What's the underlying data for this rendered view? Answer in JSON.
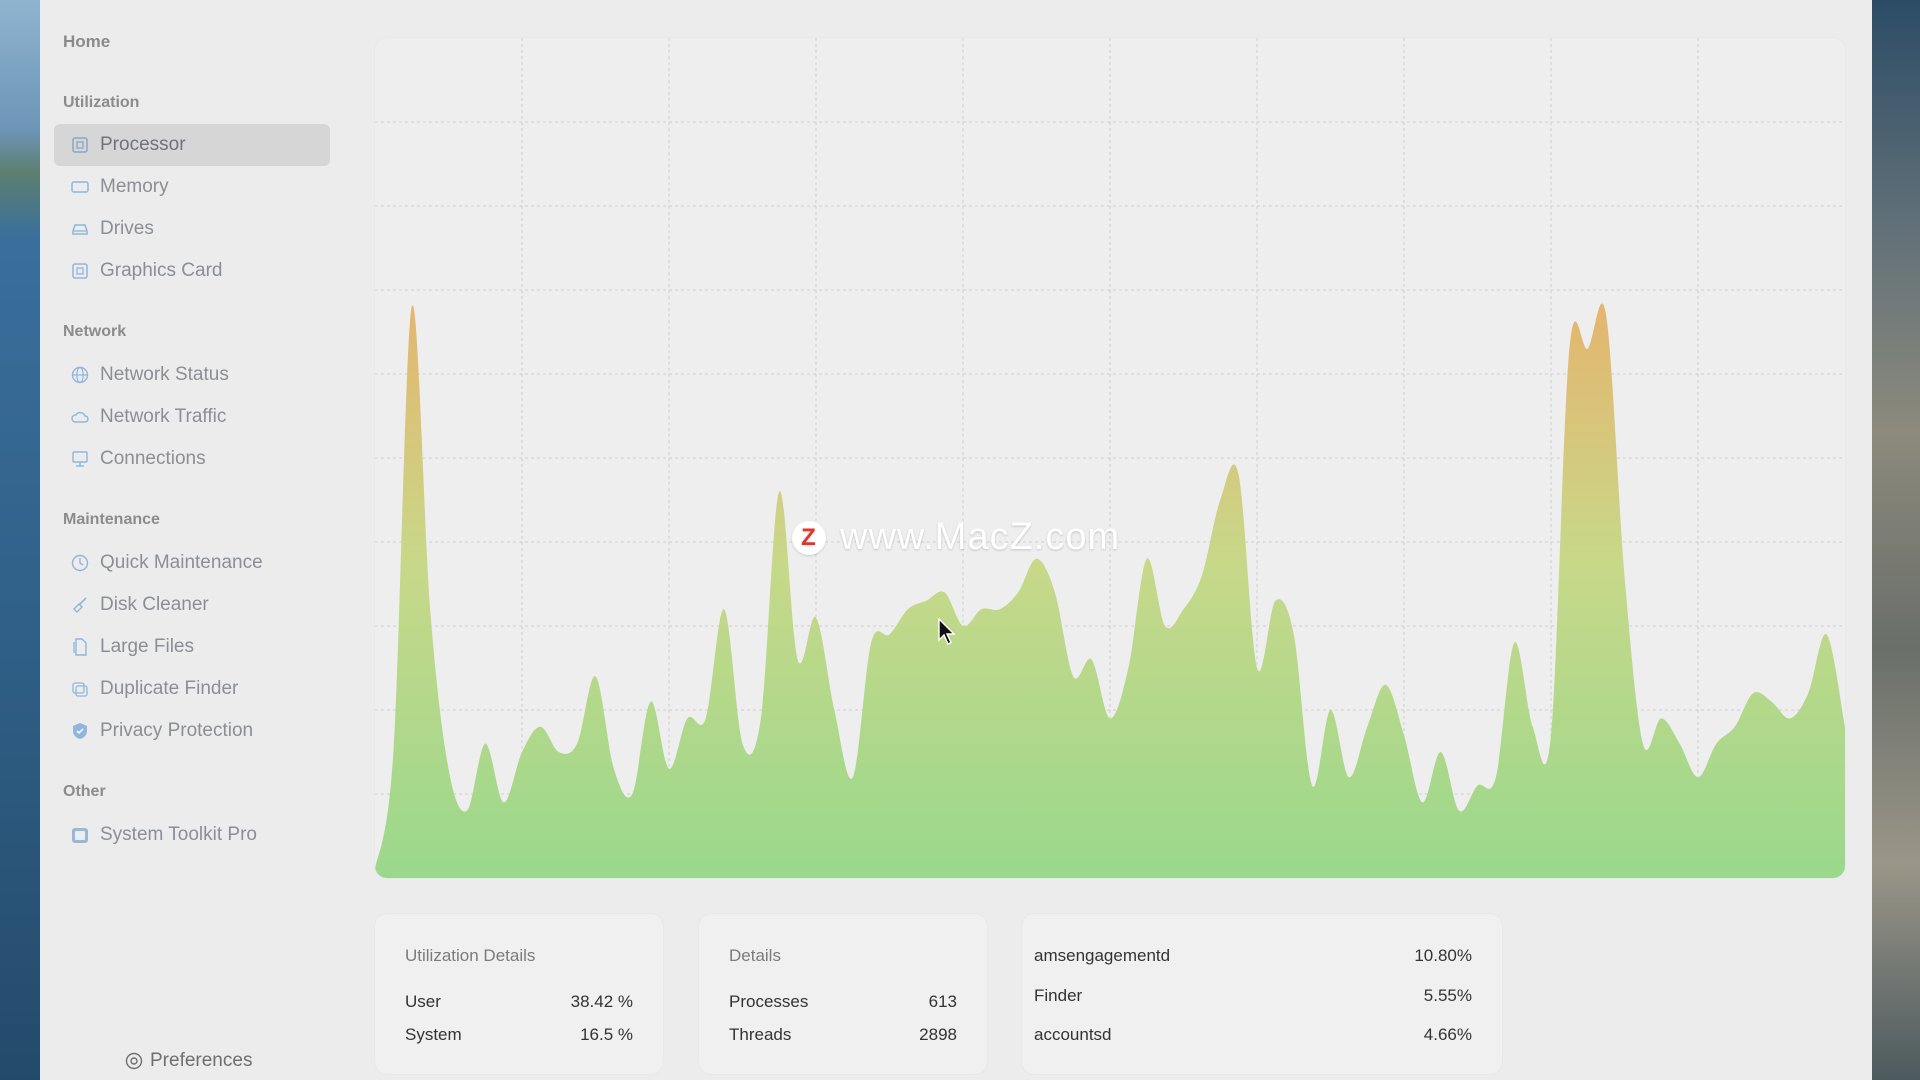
{
  "sidebar": {
    "home": "Home",
    "sections": [
      {
        "title": "Utilization",
        "items": [
          {
            "label": "Processor",
            "icon": "cpu-icon",
            "active": true
          },
          {
            "label": "Memory",
            "icon": "memory-icon"
          },
          {
            "label": "Drives",
            "icon": "drive-icon"
          },
          {
            "label": "Graphics Card",
            "icon": "gpu-icon"
          }
        ]
      },
      {
        "title": "Network",
        "items": [
          {
            "label": "Network Status",
            "icon": "globe-icon"
          },
          {
            "label": "Network Traffic",
            "icon": "cloud-icon"
          },
          {
            "label": "Connections",
            "icon": "monitor-icon"
          }
        ]
      },
      {
        "title": "Maintenance",
        "items": [
          {
            "label": "Quick Maintenance",
            "icon": "clock-icon"
          },
          {
            "label": "Disk Cleaner",
            "icon": "broom-icon"
          },
          {
            "label": "Large Files",
            "icon": "files-icon"
          },
          {
            "label": "Duplicate Finder",
            "icon": "duplicate-icon"
          },
          {
            "label": "Privacy Protection",
            "icon": "shield-icon"
          }
        ]
      },
      {
        "title": "Other",
        "items": [
          {
            "label": "System Toolkit Pro",
            "icon": "app-icon"
          }
        ]
      }
    ],
    "preferences": "Preferences"
  },
  "watermark": {
    "logo": "Z",
    "text": "www.MacZ.com"
  },
  "utilization": {
    "title": "Utilization Details",
    "rows": [
      {
        "label": "User",
        "value": "38.42 %"
      },
      {
        "label": "System",
        "value": "16.5 %"
      }
    ]
  },
  "details": {
    "title": "Details",
    "rows": [
      {
        "label": "Processes",
        "value": "613"
      },
      {
        "label": "Threads",
        "value": "2898"
      }
    ]
  },
  "top_processes": {
    "rows": [
      {
        "label": "amsengagementd",
        "value": "10.80%"
      },
      {
        "label": "Finder",
        "value": "5.55%"
      },
      {
        "label": "accountsd",
        "value": "4.66%"
      }
    ]
  },
  "colors": {
    "chart_top": "#e5b56e",
    "chart_bottom": "#9ad88c",
    "accent": "#8fb6dc"
  },
  "chart_data": {
    "type": "area",
    "title": "",
    "xlabel": "",
    "ylabel": "",
    "grid": true,
    "ylim": [
      0,
      100
    ],
    "values": [
      1,
      15,
      68,
      32,
      13,
      8,
      16,
      9,
      15,
      18,
      15,
      16,
      24,
      13,
      10,
      21,
      13,
      19,
      19,
      32,
      16,
      19,
      46,
      26,
      31,
      20,
      12,
      28,
      29,
      32,
      33,
      34,
      30,
      32,
      32,
      34,
      38,
      34,
      24,
      26,
      19,
      25,
      38,
      30,
      32,
      36,
      45,
      48,
      25,
      33,
      29,
      11,
      20,
      12,
      18,
      23,
      17,
      9,
      15,
      8,
      11,
      12,
      28,
      18,
      17,
      63,
      63,
      67,
      36,
      16,
      19,
      16,
      12,
      16,
      18,
      22,
      21,
      19,
      22,
      29,
      18
    ]
  }
}
